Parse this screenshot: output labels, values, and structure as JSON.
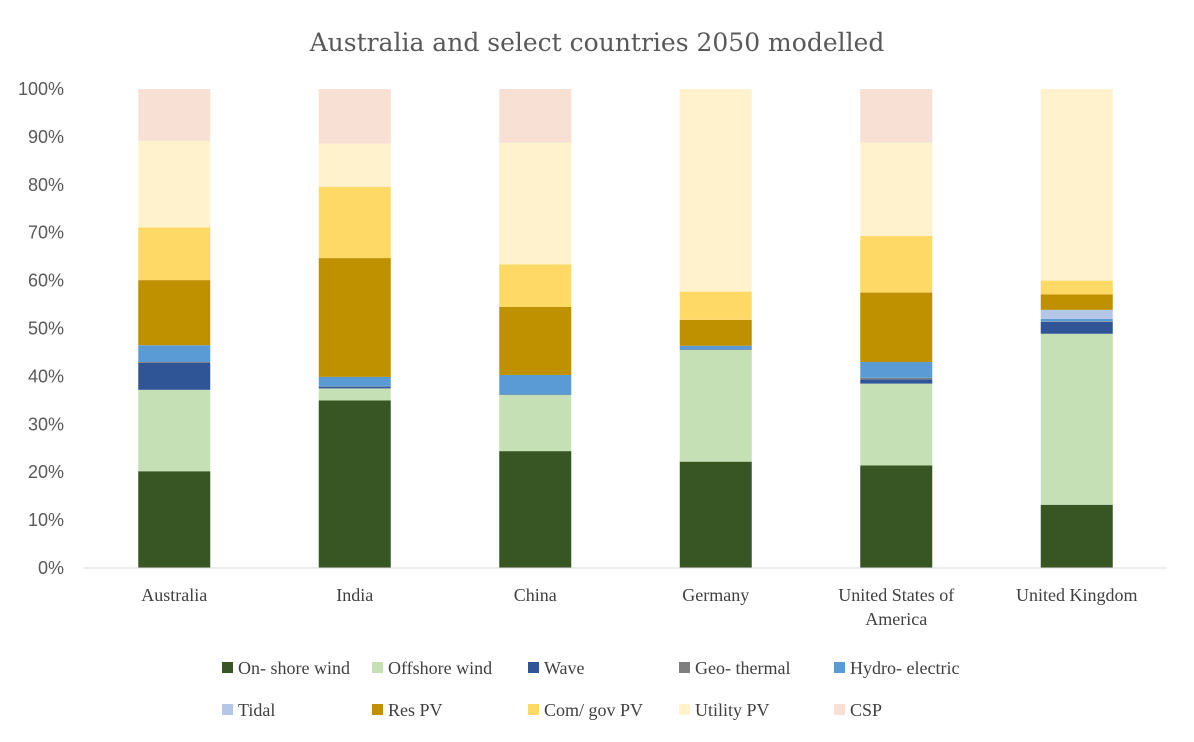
{
  "chart_data": {
    "type": "bar",
    "stacked": true,
    "title": "Australia and select countries 2050 modelled",
    "xlabel": "",
    "ylabel": "",
    "ylim": [
      0,
      100
    ],
    "y_ticks": [
      "0%",
      "10%",
      "20%",
      "30%",
      "40%",
      "50%",
      "60%",
      "70%",
      "80%",
      "90%",
      "100%"
    ],
    "categories": [
      [
        "Australia"
      ],
      [
        "India"
      ],
      [
        "China"
      ],
      [
        "Germany"
      ],
      [
        "United States of",
        "America"
      ],
      [
        "United Kingdom"
      ]
    ],
    "grid": false,
    "legend_position": "bottom",
    "series": [
      {
        "name": "On- shore wind",
        "color": "#375623",
        "values": [
          20.2,
          35.0,
          24.4,
          22.2,
          21.4,
          13.2
        ]
      },
      {
        "name": "Offshore wind",
        "color": "#C5E0B4",
        "values": [
          17.0,
          2.5,
          11.7,
          23.3,
          17.1,
          35.7
        ]
      },
      {
        "name": "Wave",
        "color": "#2F5597",
        "values": [
          5.6,
          0.3,
          0.0,
          0.0,
          0.9,
          2.5
        ]
      },
      {
        "name": "Geo- thermal",
        "color": "#7F7F7F",
        "values": [
          0.2,
          0.1,
          0.1,
          0.1,
          0.3,
          0.1
        ]
      },
      {
        "name": "Hydro- electric",
        "color": "#5B9BD5",
        "values": [
          3.5,
          2.0,
          4.1,
          0.8,
          3.3,
          0.5
        ]
      },
      {
        "name": "Tidal",
        "color": "#B4C7E7",
        "values": [
          0.0,
          0.0,
          0.0,
          0.0,
          0.0,
          1.9
        ]
      },
      {
        "name": "Res PV",
        "color": "#BF9000",
        "values": [
          13.6,
          24.8,
          14.2,
          5.4,
          14.5,
          3.2
        ]
      },
      {
        "name": "Com/ gov PV",
        "color": "#FFD966",
        "values": [
          11.0,
          14.9,
          8.9,
          5.9,
          11.8,
          2.9
        ]
      },
      {
        "name": "Utility PV",
        "color": "#FFF2CC",
        "values": [
          18.1,
          9.0,
          25.4,
          42.3,
          19.5,
          40.0
        ]
      },
      {
        "name": "CSP",
        "color": "#F8E0D4",
        "values": [
          10.8,
          11.4,
          11.2,
          0.0,
          11.2,
          0.0
        ]
      }
    ]
  }
}
